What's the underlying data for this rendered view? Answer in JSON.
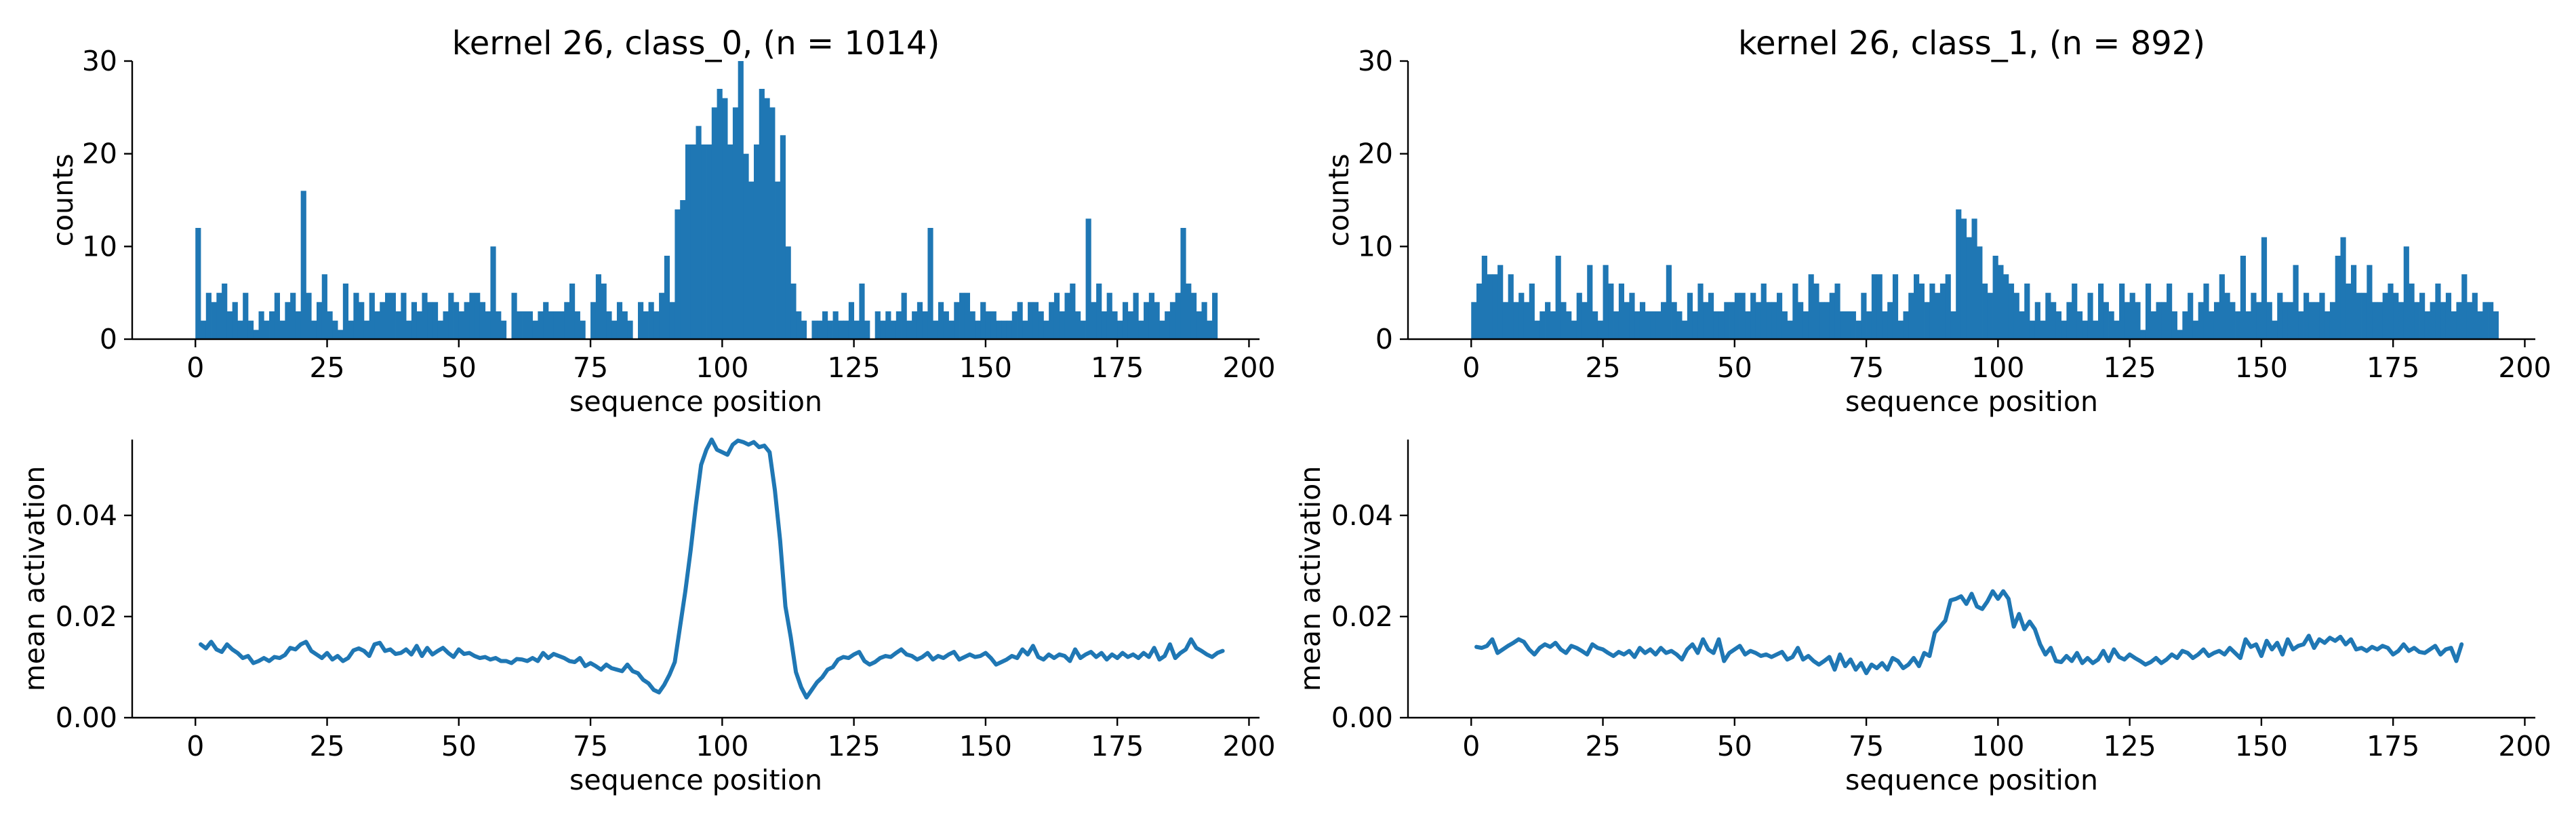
{
  "chart_data": [
    {
      "type": "bar",
      "title": "kernel 26, class_0, (n = 1014)",
      "xlabel": "sequence position",
      "ylabel": "counts",
      "xlim": [
        -12,
        202
      ],
      "ylim": [
        0,
        30
      ],
      "xticks": [
        0,
        25,
        50,
        75,
        100,
        125,
        150,
        175,
        200
      ],
      "yticks": [
        0,
        10,
        20,
        30
      ],
      "color": "#1f77b4",
      "x_start": 0,
      "bin_width": 1,
      "values": [
        12,
        2,
        5,
        4,
        5,
        6,
        3,
        4,
        2,
        5,
        2,
        1,
        3,
        2,
        3,
        5,
        2,
        4,
        5,
        3,
        16,
        5,
        2,
        4,
        7,
        3,
        2,
        1,
        6,
        2,
        5,
        4,
        2,
        5,
        3,
        4,
        5,
        5,
        3,
        5,
        2,
        4,
        3,
        5,
        4,
        4,
        2,
        3,
        5,
        4,
        3,
        4,
        5,
        5,
        4,
        3,
        10,
        3,
        2,
        0,
        5,
        3,
        3,
        3,
        2,
        3,
        4,
        3,
        3,
        3,
        4,
        6,
        3,
        2,
        0,
        4,
        7,
        6,
        3,
        2,
        4,
        3,
        2,
        0,
        4,
        3,
        4,
        3,
        5,
        9,
        4,
        14,
        15,
        21,
        21,
        23,
        21,
        21,
        25,
        27,
        26,
        21,
        25,
        30,
        20,
        17,
        21,
        27,
        26,
        25,
        17,
        22,
        10,
        6,
        3,
        2,
        0,
        2,
        2,
        3,
        2,
        3,
        2,
        2,
        4,
        2,
        6,
        2,
        0,
        3,
        2,
        3,
        2,
        3,
        5,
        2,
        3,
        4,
        3,
        12,
        2,
        4,
        3,
        2,
        4,
        5,
        5,
        3,
        2,
        4,
        3,
        3,
        2,
        2,
        2,
        3,
        4,
        2,
        4,
        4,
        3,
        2,
        4,
        5,
        3,
        5,
        6,
        3,
        2,
        13,
        4,
        6,
        3,
        5,
        3,
        2,
        4,
        3,
        5,
        2,
        4,
        5,
        4,
        2,
        3,
        4,
        5,
        12,
        6,
        5,
        3,
        4,
        2,
        5
      ],
      "secondary": {
        "type": "line",
        "xlabel": "sequence position",
        "ylabel": "mean activation",
        "xlim": [
          -12,
          202
        ],
        "ylim": [
          0,
          0.055
        ],
        "xticks": [
          0,
          25,
          50,
          75,
          100,
          125,
          150,
          175,
          200
        ],
        "yticks": [
          0.0,
          0.02,
          0.04
        ],
        "ytick_labels": [
          "0.00",
          "0.02",
          "0.04"
        ],
        "x_start": 1,
        "values": [
          0.0145,
          0.0137,
          0.015,
          0.0135,
          0.013,
          0.0145,
          0.0135,
          0.0128,
          0.0118,
          0.0122,
          0.0108,
          0.0112,
          0.0118,
          0.0112,
          0.012,
          0.0118,
          0.0124,
          0.0138,
          0.0135,
          0.0145,
          0.015,
          0.0132,
          0.0125,
          0.0118,
          0.0128,
          0.0115,
          0.0122,
          0.0112,
          0.0118,
          0.0133,
          0.0137,
          0.0132,
          0.0122,
          0.0145,
          0.0148,
          0.0132,
          0.0135,
          0.0126,
          0.0128,
          0.0135,
          0.0125,
          0.0142,
          0.0122,
          0.0138,
          0.0125,
          0.0132,
          0.0138,
          0.0128,
          0.012,
          0.0135,
          0.0126,
          0.0128,
          0.0122,
          0.0118,
          0.012,
          0.0115,
          0.0118,
          0.0112,
          0.0112,
          0.0108,
          0.0116,
          0.0115,
          0.0112,
          0.0118,
          0.0112,
          0.0128,
          0.0118,
          0.0126,
          0.0122,
          0.0118,
          0.0112,
          0.011,
          0.0118,
          0.0102,
          0.0108,
          0.0102,
          0.0095,
          0.0105,
          0.0098,
          0.0095,
          0.0092,
          0.0105,
          0.0092,
          0.0088,
          0.0075,
          0.0068,
          0.0055,
          0.005,
          0.0065,
          0.0085,
          0.011,
          0.018,
          0.025,
          0.033,
          0.042,
          0.05,
          0.053,
          0.055,
          0.053,
          0.0525,
          0.052,
          0.054,
          0.0548,
          0.0545,
          0.054,
          0.0545,
          0.0535,
          0.0538,
          0.0525,
          0.045,
          0.035,
          0.022,
          0.016,
          0.009,
          0.006,
          0.004,
          0.0055,
          0.007,
          0.008,
          0.0095,
          0.01,
          0.0115,
          0.012,
          0.0118,
          0.0125,
          0.013,
          0.0112,
          0.0105,
          0.011,
          0.0118,
          0.0122,
          0.012,
          0.0128,
          0.0135,
          0.0125,
          0.0122,
          0.0115,
          0.012,
          0.0128,
          0.0115,
          0.0122,
          0.0118,
          0.0125,
          0.013,
          0.0115,
          0.012,
          0.0125,
          0.012,
          0.0122,
          0.0128,
          0.0118,
          0.0105,
          0.011,
          0.0115,
          0.0122,
          0.0118,
          0.0135,
          0.0125,
          0.0142,
          0.012,
          0.0115,
          0.0125,
          0.0118,
          0.0125,
          0.0122,
          0.0112,
          0.0135,
          0.0118,
          0.0125,
          0.013,
          0.012,
          0.0128,
          0.0115,
          0.0125,
          0.0118,
          0.0128,
          0.012,
          0.0125,
          0.0118,
          0.0128,
          0.012,
          0.0138,
          0.0115,
          0.0122,
          0.0145,
          0.0118,
          0.0128,
          0.0135,
          0.0155,
          0.0138,
          0.0132,
          0.0125,
          0.012,
          0.0128,
          0.0132
        ]
      }
    },
    {
      "type": "bar",
      "title": "kernel 26, class_1, (n = 892)",
      "xlabel": "sequence position",
      "ylabel": "counts",
      "xlim": [
        -12,
        202
      ],
      "ylim": [
        0,
        30
      ],
      "xticks": [
        0,
        25,
        50,
        75,
        100,
        125,
        150,
        175,
        200
      ],
      "yticks": [
        0,
        10,
        20,
        30
      ],
      "color": "#1f77b4",
      "x_start": 0,
      "bin_width": 1,
      "values": [
        4,
        6,
        9,
        7,
        7,
        8,
        4,
        7,
        4,
        5,
        4,
        6,
        2,
        3,
        4,
        3,
        9,
        4,
        3,
        2,
        5,
        4,
        8,
        3,
        2,
        8,
        6,
        3,
        6,
        4,
        5,
        3,
        4,
        3,
        3,
        3,
        4,
        8,
        4,
        3,
        2,
        5,
        3,
        6,
        4,
        5,
        3,
        3,
        4,
        4,
        5,
        5,
        3,
        5,
        4,
        6,
        4,
        4,
        5,
        3,
        2,
        6,
        4,
        3,
        7,
        6,
        4,
        4,
        5,
        6,
        3,
        3,
        3,
        2,
        5,
        3,
        7,
        7,
        3,
        4,
        7,
        2,
        3,
        5,
        7,
        6,
        4,
        6,
        5,
        6,
        7,
        3,
        14,
        13,
        11,
        13,
        10,
        6,
        5,
        9,
        8,
        7,
        6,
        5,
        3,
        6,
        2,
        4,
        2,
        5,
        4,
        3,
        2,
        4,
        6,
        3,
        2,
        5,
        2,
        6,
        4,
        3,
        2,
        6,
        4,
        5,
        4,
        1,
        6,
        3,
        4,
        4,
        6,
        3,
        1,
        3,
        5,
        2,
        4,
        6,
        3,
        4,
        7,
        5,
        4,
        3,
        9,
        3,
        5,
        4,
        11,
        4,
        2,
        5,
        4,
        4,
        8,
        3,
        5,
        4,
        4,
        5,
        3,
        4,
        9,
        11,
        6,
        8,
        5,
        5,
        8,
        4,
        4,
        5,
        6,
        5,
        4,
        10,
        6,
        4,
        5,
        3,
        4,
        6,
        4,
        5,
        3,
        4,
        7,
        4,
        5,
        3,
        4,
        4,
        3
      ],
      "secondary": {
        "type": "line",
        "xlabel": "sequence position",
        "ylabel": "mean activation",
        "xlim": [
          -12,
          202
        ],
        "ylim": [
          0,
          0.055
        ],
        "xticks": [
          0,
          25,
          50,
          75,
          100,
          125,
          150,
          175,
          200
        ],
        "yticks": [
          0.0,
          0.02,
          0.04
        ],
        "ytick_labels": [
          "0.00",
          "0.02",
          "0.04"
        ],
        "x_start": 1,
        "values": [
          0.014,
          0.0138,
          0.0142,
          0.0155,
          0.0128,
          0.0135,
          0.0142,
          0.0148,
          0.0155,
          0.015,
          0.0135,
          0.0125,
          0.0138,
          0.0145,
          0.014,
          0.0148,
          0.0135,
          0.0128,
          0.0142,
          0.0138,
          0.0132,
          0.0125,
          0.0145,
          0.0138,
          0.0135,
          0.0128,
          0.0122,
          0.013,
          0.0125,
          0.0132,
          0.012,
          0.0138,
          0.0128,
          0.0135,
          0.0125,
          0.0138,
          0.0128,
          0.0132,
          0.0125,
          0.0115,
          0.0135,
          0.0145,
          0.0128,
          0.0155,
          0.0135,
          0.0128,
          0.0155,
          0.0112,
          0.0128,
          0.0135,
          0.0142,
          0.0125,
          0.0132,
          0.0128,
          0.0122,
          0.0125,
          0.012,
          0.0125,
          0.013,
          0.0115,
          0.012,
          0.0138,
          0.0115,
          0.0122,
          0.0112,
          0.0105,
          0.0112,
          0.012,
          0.0095,
          0.0125,
          0.0102,
          0.0115,
          0.0095,
          0.0108,
          0.0088,
          0.0105,
          0.0098,
          0.0108,
          0.0095,
          0.0118,
          0.0112,
          0.0098,
          0.0105,
          0.0118,
          0.0102,
          0.0128,
          0.0122,
          0.0168,
          0.018,
          0.0192,
          0.0232,
          0.0235,
          0.024,
          0.0225,
          0.0245,
          0.022,
          0.0215,
          0.023,
          0.025,
          0.0235,
          0.025,
          0.0235,
          0.018,
          0.0205,
          0.0175,
          0.019,
          0.0175,
          0.0145,
          0.0125,
          0.0138,
          0.0112,
          0.011,
          0.0122,
          0.0112,
          0.0128,
          0.0108,
          0.0118,
          0.0108,
          0.0115,
          0.0132,
          0.0112,
          0.0135,
          0.012,
          0.0115,
          0.0125,
          0.0118,
          0.0112,
          0.0105,
          0.011,
          0.0118,
          0.0108,
          0.0115,
          0.0125,
          0.0118,
          0.0132,
          0.0128,
          0.0118,
          0.0125,
          0.0135,
          0.0122,
          0.0128,
          0.0132,
          0.0125,
          0.0138,
          0.0128,
          0.0118,
          0.0155,
          0.014,
          0.0145,
          0.0122,
          0.0152,
          0.0135,
          0.0148,
          0.0125,
          0.0155,
          0.0135,
          0.0142,
          0.0145,
          0.0162,
          0.0138,
          0.0155,
          0.0148,
          0.0158,
          0.0152,
          0.016,
          0.0145,
          0.0155,
          0.0135,
          0.0138,
          0.0132,
          0.014,
          0.0135,
          0.0142,
          0.0138,
          0.0125,
          0.0132,
          0.0145,
          0.0132,
          0.0138,
          0.013,
          0.0128,
          0.0135,
          0.0142,
          0.0125,
          0.0135,
          0.0138,
          0.0112,
          0.0145
        ]
      }
    }
  ]
}
